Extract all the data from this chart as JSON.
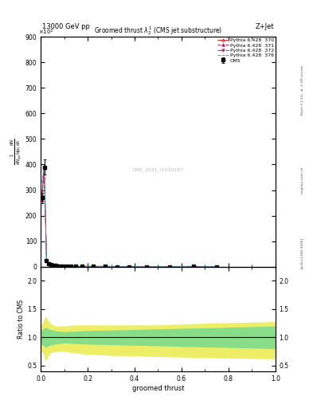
{
  "title": "Groomed thrust $\\lambda_2^1$ (CMS jet substructure)",
  "header_left": "13000 GeV pp",
  "header_right": "Z+Jet",
  "xlabel": "groomed thrust",
  "watermark": "CMS_2021_I1920187",
  "ylim_main": [
    0,
    900
  ],
  "ylim_ratio": [
    0.4,
    2.25
  ],
  "xlim": [
    0,
    1
  ],
  "data_x": [
    0.005,
    0.015,
    0.025,
    0.035,
    0.045,
    0.055,
    0.065,
    0.075,
    0.085,
    0.095,
    0.11,
    0.13,
    0.15,
    0.175,
    0.225,
    0.275,
    0.325,
    0.375,
    0.45,
    0.55,
    0.65,
    0.75
  ],
  "cms_y": [
    270,
    390,
    25,
    12,
    7,
    5,
    4,
    3,
    2,
    2,
    2,
    1,
    1,
    1,
    1,
    1,
    0,
    0,
    0,
    0,
    1,
    0
  ],
  "cms_yerr": [
    20,
    30,
    3,
    2,
    1.5,
    1,
    0.8,
    0.7,
    0.5,
    0.4,
    0.4,
    0.3,
    0.3,
    0.3,
    0.3,
    0.3,
    0,
    0,
    0,
    0,
    0.3,
    0
  ],
  "py370_y": [
    280,
    390,
    26,
    13,
    8,
    5.5,
    4.2,
    3.3,
    2.2,
    2.2,
    2.1,
    1.1,
    1.1,
    1.1,
    1.1,
    1.1,
    0.1,
    0.1,
    0.1,
    0.1,
    1.1,
    0.1
  ],
  "py371_y": [
    260,
    385,
    24,
    11,
    7,
    5.0,
    3.9,
    3.0,
    2.0,
    2.0,
    1.9,
    0.9,
    0.9,
    0.9,
    0.9,
    0.9,
    0.1,
    0.1,
    0.1,
    0.1,
    0.9,
    0.1
  ],
  "py372_y": [
    265,
    388,
    25,
    12,
    7.5,
    5.2,
    4.0,
    3.1,
    2.1,
    2.1,
    2.0,
    1.0,
    1.0,
    1.0,
    1.0,
    1.0,
    0.1,
    0.1,
    0.1,
    0.1,
    1.0,
    0.1
  ],
  "py376_y": [
    330,
    395,
    28,
    14,
    9,
    6.0,
    4.5,
    3.5,
    2.4,
    2.4,
    2.3,
    1.3,
    1.3,
    1.3,
    1.3,
    1.3,
    0.3,
    0.3,
    0.3,
    0.3,
    1.3,
    0.3
  ],
  "ratio_x": [
    0.0,
    0.01,
    0.02,
    0.04,
    0.06,
    0.1,
    0.15,
    0.2,
    0.3,
    0.5,
    0.7,
    1.0
  ],
  "ratio_yl_upper": [
    1.2,
    1.28,
    1.38,
    1.25,
    1.2,
    1.2,
    1.22,
    1.22,
    1.22,
    1.22,
    1.25,
    1.28
  ],
  "ratio_yl_lower": [
    0.75,
    0.72,
    0.58,
    0.72,
    0.75,
    0.75,
    0.72,
    0.7,
    0.68,
    0.66,
    0.64,
    0.62
  ],
  "ratio_gr_upper": [
    1.12,
    1.15,
    1.18,
    1.14,
    1.12,
    1.1,
    1.11,
    1.12,
    1.13,
    1.15,
    1.17,
    1.2
  ],
  "ratio_gr_lower": [
    0.88,
    0.86,
    0.82,
    0.86,
    0.88,
    0.9,
    0.89,
    0.88,
    0.87,
    0.85,
    0.83,
    0.8
  ],
  "color_cms": "#000000",
  "color_370": "#dd2222",
  "color_371": "#cc1155",
  "color_372": "#cc2277",
  "color_376": "#00bbbb",
  "color_green": "#88dd88",
  "color_yellow": "#eeee66",
  "legend_entries": [
    "CMS",
    "Pythia 6.428  370",
    "Pythia 6.428  371",
    "Pythia 6.428  372",
    "Pythia 6.428  376"
  ]
}
